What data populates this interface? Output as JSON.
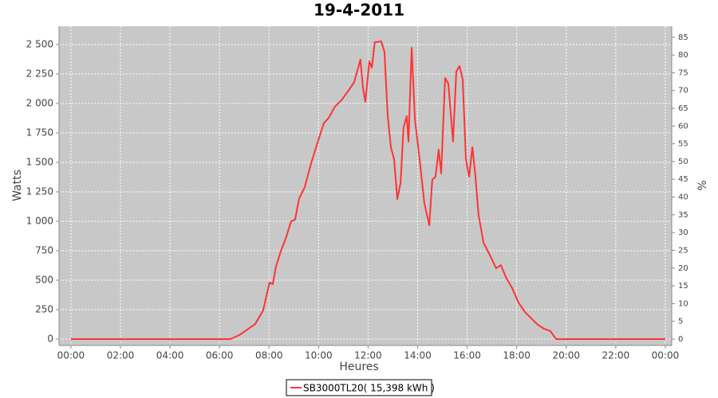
{
  "chart_data": {
    "type": "line",
    "title": "19-4-2011",
    "x_label": "Heures",
    "y_label": "Watts",
    "y2_label": "%",
    "xlim": [
      -0.48,
      24.26
    ],
    "xticks": [
      {
        "value": 0,
        "label": "00:00"
      },
      {
        "value": 2,
        "label": "02:00"
      },
      {
        "value": 4,
        "label": "04:00"
      },
      {
        "value": 6,
        "label": "06:00"
      },
      {
        "value": 8,
        "label": "08:00"
      },
      {
        "value": 10,
        "label": "10:00"
      },
      {
        "value": 12,
        "label": "12:00"
      },
      {
        "value": 14,
        "label": "14:00"
      },
      {
        "value": 16,
        "label": "16:00"
      },
      {
        "value": 18,
        "label": "18:00"
      },
      {
        "value": 20,
        "label": "20:00"
      },
      {
        "value": 22,
        "label": "22:00"
      },
      {
        "value": 24,
        "label": "00:00"
      }
    ],
    "ylim": [
      -54,
      2655
    ],
    "yticks": [
      0,
      250,
      500,
      750,
      {
        "value": 1000,
        "label": "1 000"
      },
      {
        "value": 1250,
        "label": "1 250"
      },
      {
        "value": 1500,
        "label": "1 500"
      },
      {
        "value": 1750,
        "label": "1 750"
      },
      {
        "value": 2000,
        "label": "2 000"
      },
      {
        "value": 2250,
        "label": "2 250"
      },
      {
        "value": 2500,
        "label": "2 500"
      }
    ],
    "y2lim": [
      -1.8,
      88.1
    ],
    "y2ticks": [
      0,
      5,
      10,
      15,
      20,
      25,
      30,
      35,
      40,
      45,
      50,
      55,
      60,
      65,
      70,
      75,
      80,
      85
    ],
    "grid": true,
    "legend": "bottom",
    "x": [
      0,
      6.44,
      6.8,
      7.12,
      7.44,
      7.76,
      8.02,
      8.15,
      8.28,
      8.47,
      8.67,
      8.89,
      9.05,
      9.21,
      9.44,
      9.7,
      9.95,
      10.21,
      10.41,
      10.66,
      10.92,
      11.18,
      11.44,
      11.69,
      11.79,
      11.89,
      12.05,
      12.15,
      12.27,
      12.53,
      12.66,
      12.79,
      12.92,
      13.05,
      13.18,
      13.31,
      13.43,
      13.56,
      13.63,
      13.76,
      13.89,
      14.08,
      14.27,
      14.47,
      14.59,
      14.72,
      14.85,
      14.95,
      15.11,
      15.24,
      15.43,
      15.56,
      15.69,
      15.82,
      15.95,
      16.08,
      16.21,
      16.33,
      16.46,
      16.66,
      16.91,
      17.17,
      17.36,
      17.56,
      17.82,
      18.07,
      18.33,
      18.59,
      18.85,
      19.1,
      19.36,
      19.59,
      24
    ],
    "series": [
      {
        "name": "SB3000TL20( 15,398 kWh )",
        "color": "#ff3333",
        "values": [
          0,
          0,
          34,
          81,
          128,
          243,
          480,
          466,
          615,
          743,
          851,
          1000,
          1013,
          1189,
          1290,
          1493,
          1662,
          1831,
          1878,
          1973,
          2027,
          2101,
          2182,
          2372,
          2135,
          2014,
          2358,
          2304,
          2520,
          2527,
          2439,
          1899,
          1628,
          1527,
          1189,
          1324,
          1797,
          1892,
          1676,
          2473,
          1865,
          1527,
          1155,
          966,
          1351,
          1378,
          1608,
          1405,
          2216,
          2169,
          1676,
          2270,
          2318,
          2203,
          1527,
          1378,
          1628,
          1392,
          1054,
          818,
          716,
          601,
          628,
          527,
          432,
          311,
          230,
          176,
          122,
          88,
          68,
          0,
          0
        ]
      }
    ]
  }
}
